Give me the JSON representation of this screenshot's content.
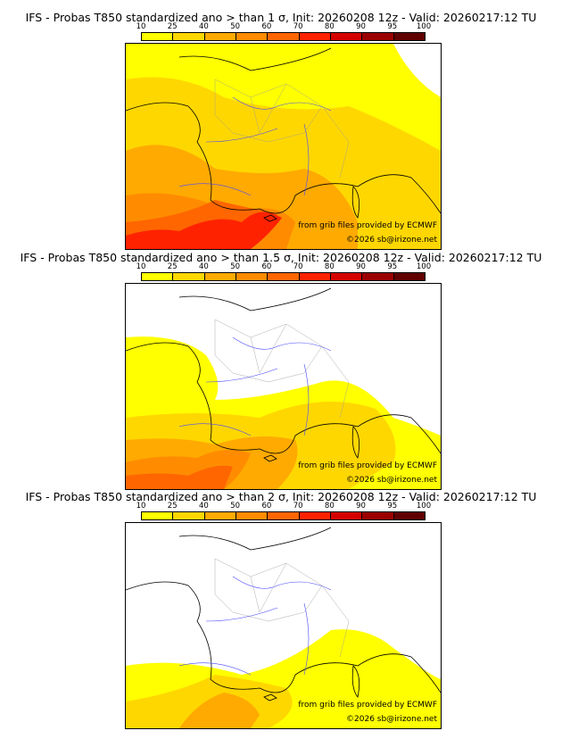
{
  "colorbar": {
    "ticks": [
      "10",
      "25",
      "40",
      "50",
      "60",
      "70",
      "80",
      "90",
      "95",
      "100"
    ],
    "colors": [
      "#ffff00",
      "#ffd700",
      "#ffaa00",
      "#ff8c00",
      "#ff6600",
      "#ff2200",
      "#d40000",
      "#9a0000",
      "#600000"
    ]
  },
  "panels": [
    {
      "title": "IFS - Probas T850  standardized ano > than 1 σ, Init: 20260208 12z - Valid: 20260217:12 TU",
      "sigma": 1,
      "credit_source": "from grib files provided by ECMWF",
      "credit_copy": "©2026 sb@irizone.net"
    },
    {
      "title": "IFS - Probas T850  standardized ano > than 1.5 σ, Init: 20260208 12z - Valid: 20260217:12 TU",
      "sigma": 1.5,
      "credit_source": "from grib files provided by ECMWF",
      "credit_copy": "©2026 sb@irizone.net"
    },
    {
      "title": "IFS - Probas T850  standardized ano > than 2 σ, Init: 20260208 12z - Valid: 20260217:12 TU",
      "sigma": 2,
      "credit_source": "from grib files provided by ECMWF",
      "credit_copy": "©2026 sb@irizone.net"
    }
  ]
}
